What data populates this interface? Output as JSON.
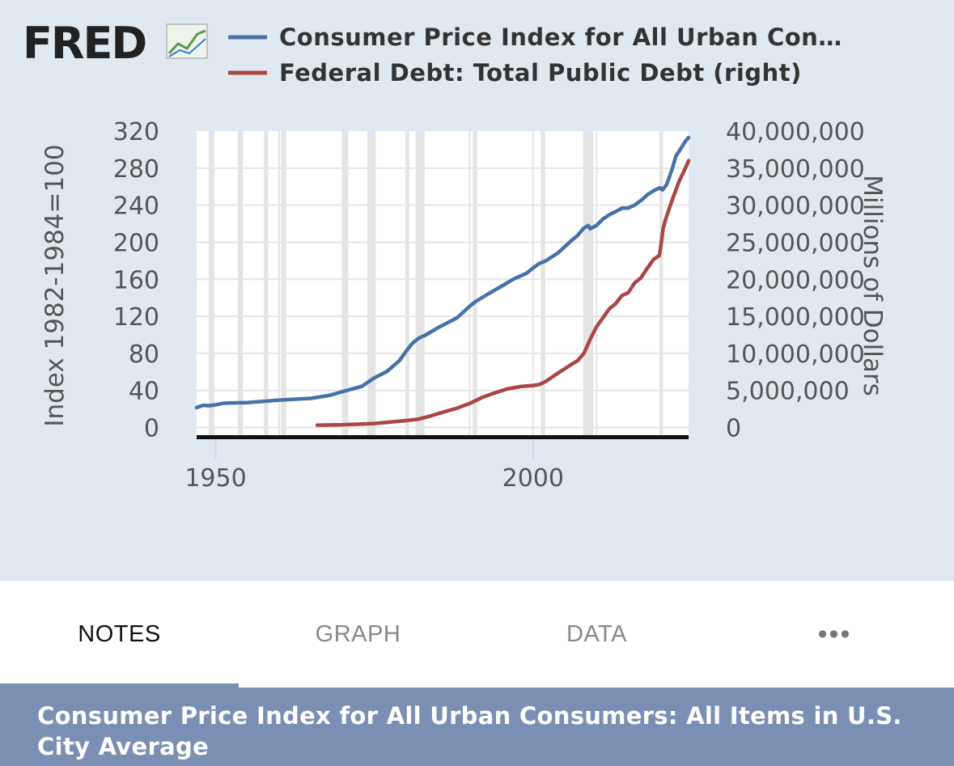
{
  "logo": {
    "text": "FRED"
  },
  "chart_data": {
    "type": "line",
    "title": "",
    "legend_placement": "top",
    "grid": true,
    "xlabel": "",
    "x_ticks": [
      "1950",
      "2000"
    ],
    "xlim": [
      1947,
      2024.5
    ],
    "left_axis": {
      "label": "Index 1982-1984=100",
      "ylim": [
        -10,
        320
      ],
      "ticks": [
        "320",
        "280",
        "240",
        "200",
        "160",
        "120",
        "80",
        "40",
        "0"
      ],
      "tick_values": [
        320,
        280,
        240,
        200,
        160,
        120,
        80,
        40,
        0
      ]
    },
    "right_axis": {
      "label": "Millions of Dollars",
      "ylim": [
        -1250000,
        40000000
      ],
      "ticks": [
        "40,000,000",
        "35,000,000",
        "30,000,000",
        "25,000,000",
        "20,000,000",
        "15,000,000",
        "10,000,000",
        "5,000,000",
        "0"
      ],
      "tick_values": [
        40000000,
        35000000,
        30000000,
        25000000,
        20000000,
        15000000,
        10000000,
        5000000,
        0
      ]
    },
    "recessions": [
      [
        1948.9,
        1949.8
      ],
      [
        1953.5,
        1954.3
      ],
      [
        1957.6,
        1958.3
      ],
      [
        1960.3,
        1961.1
      ],
      [
        1969.9,
        1970.9
      ],
      [
        1973.9,
        1975.2
      ],
      [
        1980.0,
        1980.5
      ],
      [
        1981.5,
        1982.9
      ],
      [
        1990.5,
        1991.2
      ],
      [
        2001.2,
        2001.9
      ],
      [
        2007.9,
        2009.5
      ],
      [
        2020.1,
        2020.4
      ]
    ],
    "series": [
      {
        "name": "Consumer Price Index for All Urban Con…",
        "axis": "left",
        "color": "#4572a7",
        "x": [
          1947,
          1948,
          1949,
          1950,
          1951,
          1952,
          1955,
          1957,
          1960,
          1965,
          1968,
          1970,
          1973,
          1975,
          1977,
          1979,
          1980,
          1981,
          1982,
          1983,
          1985,
          1988,
          1990,
          1991,
          1993,
          1995,
          1997,
          1999,
          2000,
          2001,
          2002,
          2004,
          2006,
          2007,
          2008,
          2008.7,
          2009,
          2010,
          2011,
          2012,
          2013,
          2014,
          2015,
          2016,
          2017,
          2018,
          2019,
          2020,
          2020.4,
          2021,
          2021.5,
          2022,
          2022.5,
          2023,
          2024,
          2024.5
        ],
        "y": [
          21.5,
          24,
          23.5,
          24.5,
          26,
          26.5,
          26.8,
          28,
          29.6,
          31.5,
          34.8,
          38.8,
          44.4,
          53.6,
          60.6,
          72.6,
          82.4,
          90.9,
          96.5,
          99.6,
          107.6,
          118.3,
          130.7,
          136.2,
          144.5,
          152.4,
          160.5,
          166.6,
          172.2,
          177.1,
          179.9,
          188.9,
          201.6,
          207.3,
          215.3,
          218,
          214.5,
          218.1,
          224.9,
          229.6,
          233,
          236.7,
          237,
          240,
          245.1,
          251.1,
          255.7,
          258.8,
          256.4,
          261.6,
          271,
          281.1,
          293,
          298,
          309,
          313
        ]
      },
      {
        "name": "Federal Debt: Total Public Debt (right)",
        "axis": "right",
        "color": "#aa4643",
        "x": [
          1966,
          1970,
          1973,
          1975,
          1978,
          1980,
          1982,
          1984,
          1986,
          1988,
          1990,
          1992,
          1994,
          1996,
          1998,
          2000,
          2001,
          2002,
          2004,
          2006,
          2007,
          2008,
          2009,
          2010,
          2011,
          2012,
          2013,
          2014,
          2015,
          2016,
          2017,
          2018,
          2019,
          2019.9,
          2020.2,
          2020.5,
          2021,
          2022,
          2023,
          2024,
          2024.5
        ],
        "y": [
          320000,
          380000,
          460000,
          540000,
          780000,
          930000,
          1140000,
          1600000,
          2120000,
          2600000,
          3230000,
          4060000,
          4690000,
          5220000,
          5530000,
          5670000,
          5800000,
          6230000,
          7380000,
          8500000,
          9000000,
          10000000,
          11900000,
          13600000,
          14800000,
          16000000,
          16700000,
          17800000,
          18200000,
          19500000,
          20200000,
          21500000,
          22700000,
          23200000,
          25000000,
          26900000,
          28400000,
          30900000,
          33200000,
          35000000,
          36000000
        ]
      }
    ]
  },
  "tabs": [
    {
      "label": "NOTES",
      "active": true
    },
    {
      "label": "GRAPH",
      "active": false
    },
    {
      "label": "DATA",
      "active": false
    },
    {
      "label": "•••",
      "active": false
    }
  ],
  "series_title": "Consumer Price Index for All Urban Consumers: All Items in U.S. City Average",
  "colors": {
    "background": "#e1e9f0",
    "plot_background": "#ffffff",
    "banner": "#7a8fb3",
    "tab_indicator": "#7a90b3"
  }
}
